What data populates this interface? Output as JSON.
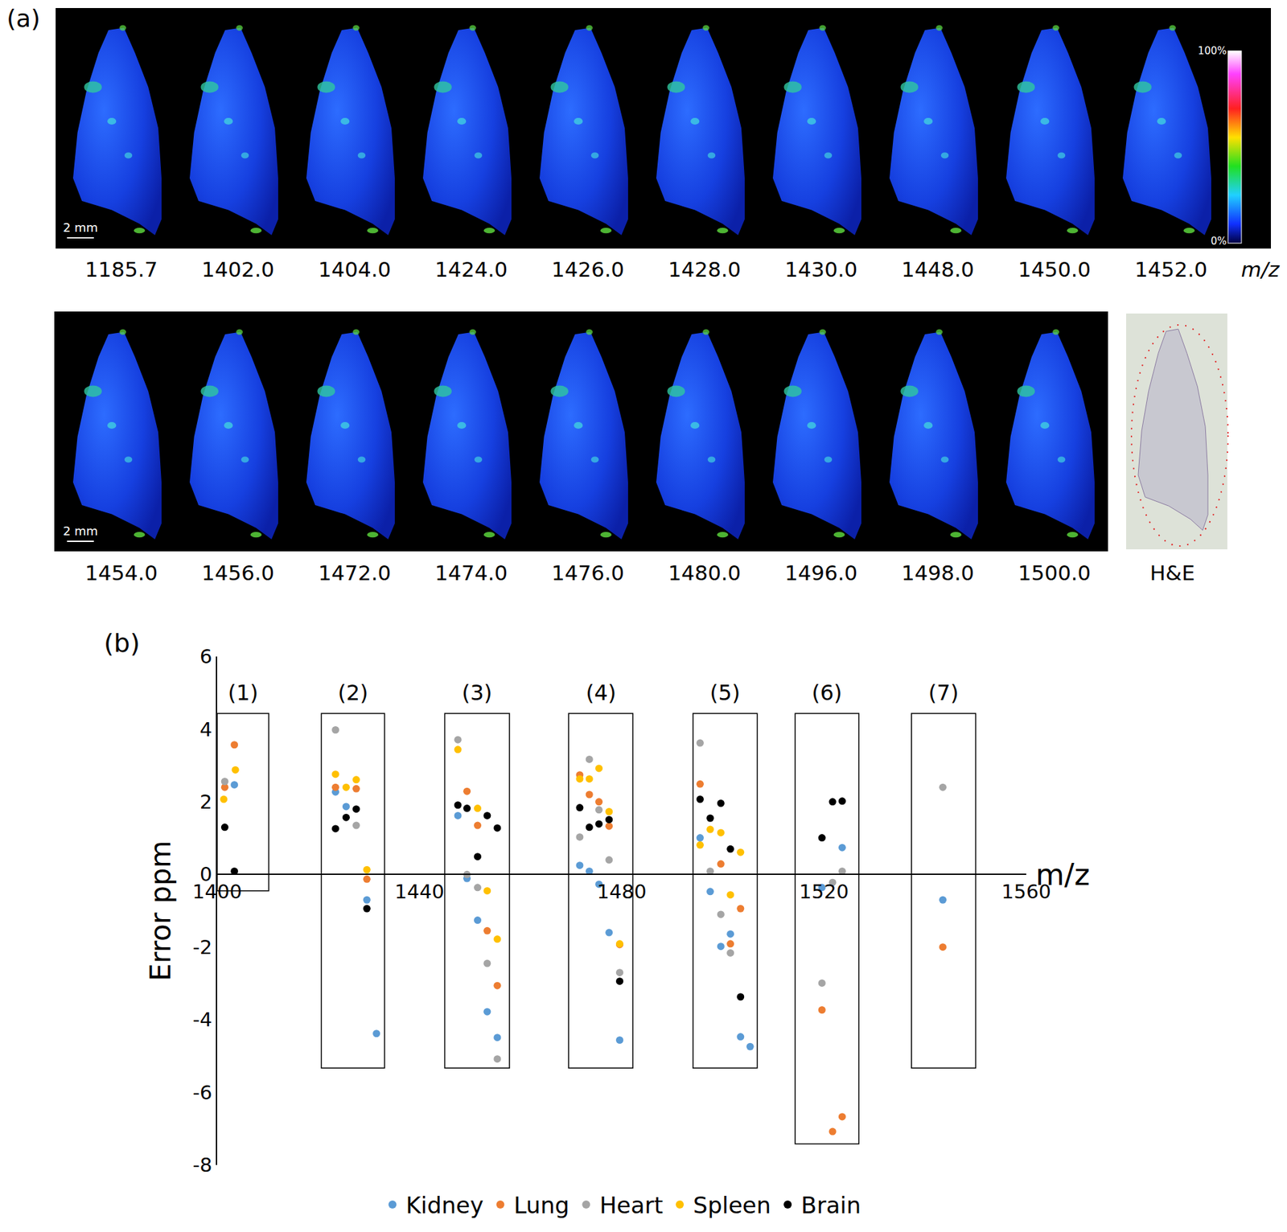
{
  "panel_a": {
    "label": "(a)",
    "rows": [
      [
        "1185.7",
        "1402.0",
        "1404.0",
        "1424.0",
        "1426.0",
        "1428.0",
        "1430.0",
        "1448.0",
        "1450.0",
        "1452.0"
      ],
      [
        "1454.0",
        "1456.0",
        "1472.0",
        "1474.0",
        "1476.0",
        "1480.0",
        "1496.0",
        "1498.0",
        "1500.0"
      ]
    ],
    "unit": "m/z",
    "scale_bar": "2 mm",
    "color_scale": {
      "max": "100%",
      "min": "0%"
    },
    "stain": "H&E"
  },
  "chart_data": {
    "type": "scatter",
    "panel_label": "(b)",
    "x_label": "m/z",
    "y_label": "Error ppm",
    "xlim": [
      1400,
      1560
    ],
    "xticks": [
      1400,
      1440,
      1480,
      1520,
      1560
    ],
    "ylim": [
      -8,
      6
    ],
    "yticks": [
      -8,
      -6,
      -4,
      -2,
      0,
      2,
      4,
      6
    ],
    "grid": false,
    "legend": "bottom",
    "marker": "circle",
    "groups": [
      {
        "label": "(1)",
        "x0": 1400,
        "x1": 1410.2,
        "y0": -0.45,
        "y1": 4.43
      },
      {
        "label": "(2)",
        "x0": 1420.6,
        "x1": 1433.1,
        "y0": -5.33,
        "y1": 4.43
      },
      {
        "label": "(3)",
        "x0": 1445.0,
        "x1": 1457.8,
        "y0": -5.33,
        "y1": 4.43
      },
      {
        "label": "(4)",
        "x0": 1469.5,
        "x1": 1482.2,
        "y0": -5.33,
        "y1": 4.43
      },
      {
        "label": "(5)",
        "x0": 1494.1,
        "x1": 1506.8,
        "y0": -5.33,
        "y1": 4.43
      },
      {
        "label": "(6)",
        "x0": 1514.3,
        "x1": 1526.9,
        "y0": -7.42,
        "y1": 4.43
      },
      {
        "label": "(7)",
        "x0": 1537.3,
        "x1": 1550.0,
        "y0": -5.33,
        "y1": 4.43
      }
    ],
    "series": [
      {
        "name": "Kidney",
        "color": "#5b9bd5",
        "x": [
          1403.4,
          1423.4,
          1425.5,
          1429.6,
          1431.5,
          1447.6,
          1449.4,
          1451.5,
          1453.4,
          1455.4,
          1471.7,
          1473.6,
          1475.5,
          1477.5,
          1479.6,
          1495.5,
          1497.5,
          1499.6,
          1501.5,
          1503.5,
          1505.4,
          1519.6,
          1523.6,
          1543.5
        ],
        "values": [
          2.47,
          2.27,
          1.87,
          -0.7,
          -4.38,
          1.62,
          -0.11,
          -1.26,
          -3.78,
          -4.49,
          0.25,
          0.09,
          -0.27,
          -1.6,
          -4.56,
          1.01,
          -0.47,
          -1.98,
          -1.64,
          -4.47,
          -4.74,
          -0.36,
          0.74,
          -0.7
        ]
      },
      {
        "name": "Lung",
        "color": "#ed7d31",
        "x": [
          1401.5,
          1403.4,
          1423.4,
          1427.5,
          1429.6,
          1449.4,
          1451.5,
          1453.4,
          1455.4,
          1471.7,
          1473.6,
          1475.5,
          1477.5,
          1479.6,
          1495.5,
          1499.6,
          1501.5,
          1503.5,
          1519.6,
          1521.7,
          1523.6,
          1543.5
        ],
        "values": [
          2.4,
          3.57,
          2.4,
          2.36,
          -0.13,
          2.29,
          1.35,
          -1.55,
          -3.06,
          2.74,
          2.2,
          2.0,
          1.33,
          -1.93,
          2.49,
          0.29,
          -1.91,
          -0.94,
          -3.73,
          -7.08,
          -6.67,
          -2.0
        ]
      },
      {
        "name": "Heart",
        "color": "#a5a5a5",
        "x": [
          1401.5,
          1423.4,
          1427.5,
          1447.6,
          1449.4,
          1451.5,
          1453.4,
          1455.4,
          1471.7,
          1473.6,
          1475.5,
          1477.5,
          1479.6,
          1495.5,
          1497.5,
          1499.6,
          1501.5,
          1519.6,
          1521.7,
          1523.6,
          1543.5
        ],
        "values": [
          2.56,
          3.98,
          1.35,
          3.71,
          0.0,
          -0.36,
          -2.45,
          -5.08,
          1.03,
          3.17,
          1.78,
          0.4,
          -2.7,
          3.62,
          0.09,
          -1.1,
          -2.16,
          -2.99,
          -0.22,
          0.09,
          2.4
        ]
      },
      {
        "name": "Spleen",
        "color": "#ffc000",
        "x": [
          1401.3,
          1403.6,
          1423.4,
          1425.5,
          1427.5,
          1429.6,
          1447.6,
          1451.5,
          1453.4,
          1455.4,
          1471.7,
          1473.6,
          1475.5,
          1477.5,
          1479.6,
          1495.5,
          1497.5,
          1499.6,
          1501.5,
          1503.5
        ],
        "values": [
          2.07,
          2.88,
          2.76,
          2.4,
          2.61,
          0.13,
          3.44,
          1.82,
          -0.45,
          -1.78,
          2.63,
          2.63,
          2.92,
          1.73,
          -1.91,
          0.81,
          1.24,
          1.15,
          -0.56,
          0.61
        ]
      },
      {
        "name": "Brain",
        "color": "#000000",
        "x": [
          1401.5,
          1403.4,
          1423.4,
          1425.5,
          1427.5,
          1429.6,
          1447.6,
          1449.4,
          1451.5,
          1453.4,
          1455.4,
          1471.7,
          1473.6,
          1475.5,
          1477.5,
          1479.6,
          1495.5,
          1497.5,
          1499.6,
          1501.5,
          1503.5,
          1519.6,
          1521.7,
          1523.6
        ],
        "values": [
          1.3,
          0.09,
          1.26,
          1.57,
          1.8,
          -0.94,
          1.91,
          1.82,
          0.49,
          1.62,
          1.28,
          1.84,
          1.3,
          1.39,
          1.51,
          -2.94,
          2.07,
          1.55,
          1.96,
          0.7,
          -3.37,
          1.01,
          2.0,
          2.02
        ]
      }
    ]
  }
}
